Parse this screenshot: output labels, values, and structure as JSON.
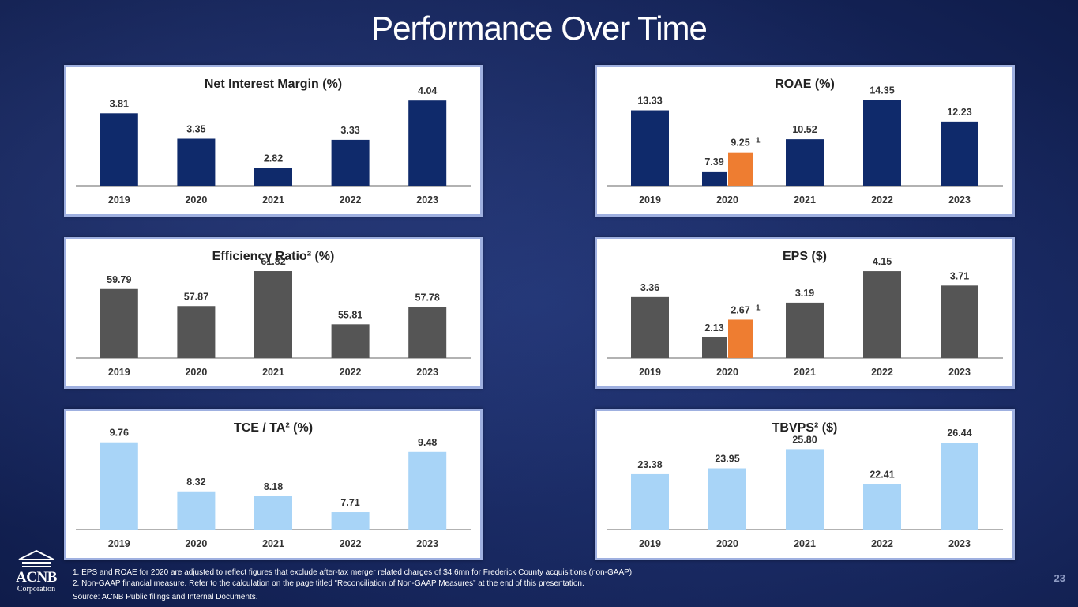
{
  "page": {
    "title": "Performance Over Time",
    "page_number": "23",
    "footnotes": [
      "1.  EPS and ROAE for 2020 are adjusted to reflect figures that exclude after-tax merger related charges of $4.6mn for Frederick County acquisitions (non-GAAP).",
      "2.  Non-GAAP financial measure. Refer to the calculation on the page titled “Reconciliation of Non-GAAP Measures” at the end of this presentation."
    ],
    "source": "Source: ACNB Public filings and Internal Documents.",
    "logo": {
      "name": "ACNB",
      "subtitle": "Corporation"
    }
  },
  "colors": {
    "navy": "#0f2a6b",
    "gray": "#555555",
    "light_blue": "#a8d4f7",
    "orange": "#ee7d31"
  },
  "chart_data": [
    {
      "id": "nim",
      "type": "bar",
      "title": "Net Interest Margin (%)",
      "categories": [
        "2019",
        "2020",
        "2021",
        "2022",
        "2023"
      ],
      "values": [
        3.81,
        3.35,
        2.82,
        3.33,
        4.04
      ],
      "labels": [
        "3.81",
        "3.35",
        "2.82",
        "3.33",
        "4.04"
      ],
      "ylim": [
        2.5,
        4.1
      ],
      "color": "navy"
    },
    {
      "id": "roae",
      "type": "bar",
      "title": "ROAE (%)",
      "categories": [
        "2019",
        "2020",
        "2021",
        "2022",
        "2023"
      ],
      "values": [
        13.33,
        7.39,
        10.52,
        14.35,
        12.23
      ],
      "labels": [
        "13.33",
        "7.39",
        "10.52",
        "14.35",
        "12.23"
      ],
      "ylim": [
        6,
        14.6
      ],
      "color": "navy",
      "adjusted": {
        "category": "2020",
        "value": 9.25,
        "label": "9.25",
        "note": "1",
        "color": "orange"
      }
    },
    {
      "id": "eff",
      "type": "bar",
      "title": "Efficiency Ratio² (%)",
      "categories": [
        "2019",
        "2020",
        "2021",
        "2022",
        "2023"
      ],
      "values": [
        59.79,
        57.87,
        61.82,
        55.81,
        57.78
      ],
      "labels": [
        "59.79",
        "57.87",
        "61.82",
        "55.81",
        "57.78"
      ],
      "ylim": [
        52,
        62
      ],
      "color": "gray"
    },
    {
      "id": "eps",
      "type": "bar",
      "title": "EPS ($)",
      "categories": [
        "2019",
        "2020",
        "2021",
        "2022",
        "2023"
      ],
      "values": [
        3.36,
        2.13,
        3.19,
        4.15,
        3.71
      ],
      "labels": [
        "3.36",
        "2.13",
        "3.19",
        "4.15",
        "3.71"
      ],
      "ylim": [
        1.5,
        4.2
      ],
      "color": "gray",
      "adjusted": {
        "category": "2020",
        "value": 2.67,
        "label": "2.67",
        "note": "1",
        "color": "orange"
      }
    },
    {
      "id": "tce",
      "type": "bar",
      "title": "TCE / TA² (%)",
      "categories": [
        "2019",
        "2020",
        "2021",
        "2022",
        "2023"
      ],
      "values": [
        9.76,
        8.32,
        8.18,
        7.71,
        9.48
      ],
      "labels": [
        "9.76",
        "8.32",
        "8.18",
        "7.71",
        "9.48"
      ],
      "ylim": [
        7.2,
        9.8
      ],
      "color": "light_blue"
    },
    {
      "id": "tbv",
      "type": "bar",
      "title": "TBVPS² ($)",
      "categories": [
        "2019",
        "2020",
        "2021",
        "2022",
        "2023"
      ],
      "values": [
        23.38,
        23.95,
        25.8,
        22.41,
        26.44
      ],
      "labels": [
        "23.38",
        "23.95",
        "25.80",
        "22.41",
        "26.44"
      ],
      "ylim": [
        18,
        26.6
      ],
      "color": "light_blue"
    }
  ]
}
